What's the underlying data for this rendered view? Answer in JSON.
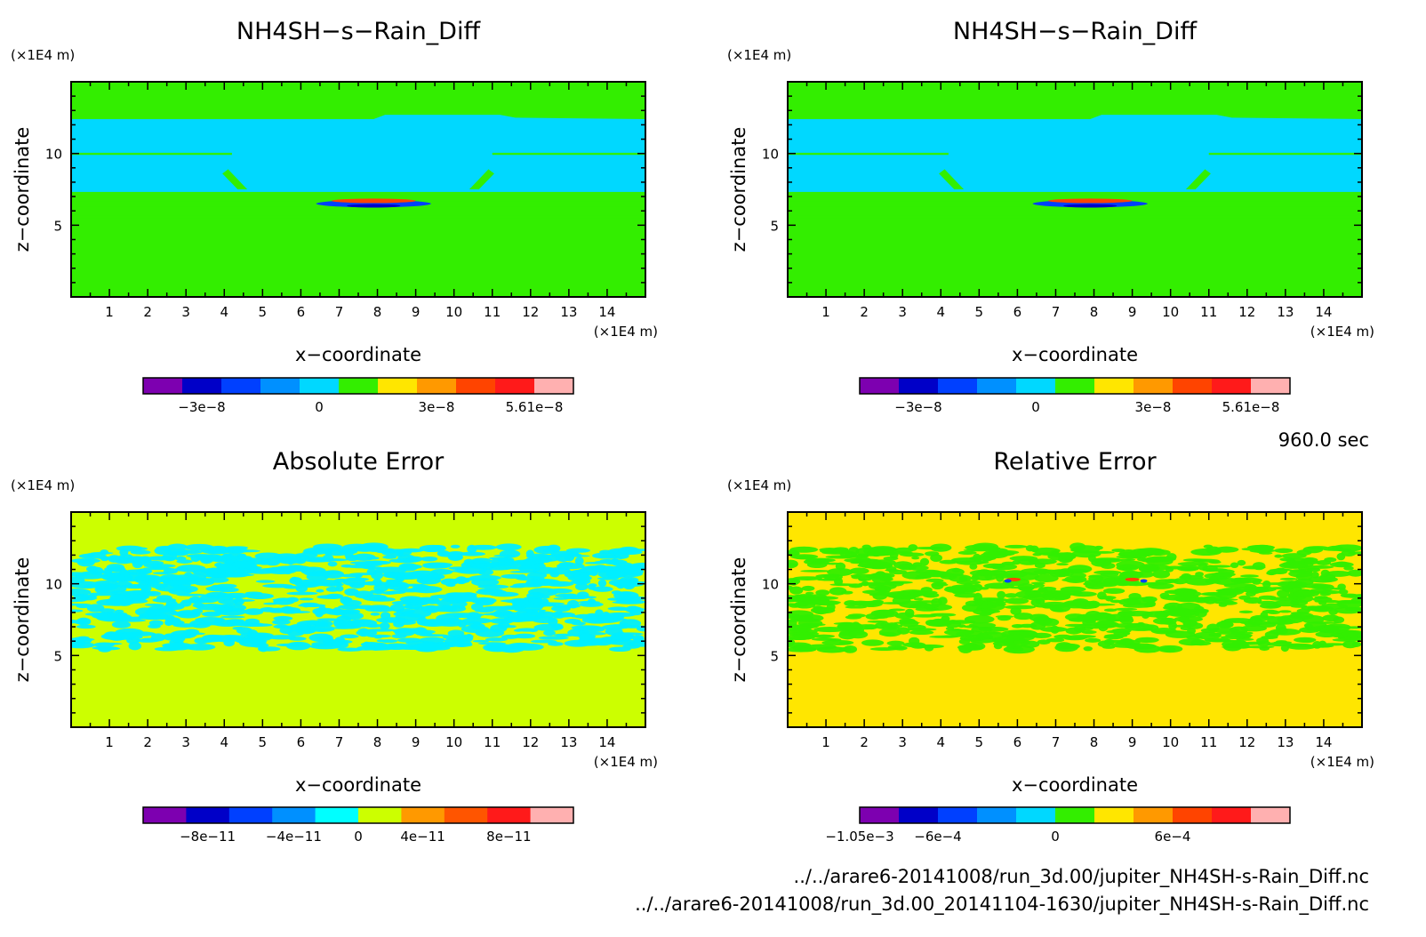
{
  "time_label": "960.0 sec",
  "source_files": [
    "../../arare6-20141008/run_3d.00/jupiter_NH4SH-s-Rain_Diff.nc",
    "../../arare6-20141008/run_3d.00_20141104-1630/jupiter_NH4SH-s-Rain_Diff.nc"
  ],
  "chart_data": [
    {
      "type": "heatmap",
      "title": "NH4SH−s−Rain_Diff",
      "xlabel": "x−coordinate",
      "ylabel": "z−coordinate",
      "x_unit": "(×1E4 m)",
      "z_unit": "(×1E4 m)",
      "xlim": [
        0,
        15
      ],
      "zlim": [
        0,
        15
      ],
      "x_ticks": [
        "1",
        "2",
        "3",
        "4",
        "5",
        "6",
        "7",
        "8",
        "9",
        "10",
        "11",
        "12",
        "13",
        "14"
      ],
      "z_ticks": [
        "5",
        "10"
      ],
      "background_color": "#33ee00",
      "colorbar": {
        "colors": [
          "#7d00b0",
          "#0000c8",
          "#0040ff",
          "#0090ff",
          "#00d8ff",
          "#33ee00",
          "#ffe600",
          "#ff9900",
          "#ff4400",
          "#ff1a1a",
          "#ffb0b0"
        ],
        "labels": [
          "−3e−8",
          "0",
          "3e−8",
          "5.61e−8"
        ]
      }
    },
    {
      "type": "heatmap",
      "title": "NH4SH−s−Rain_Diff",
      "xlabel": "x−coordinate",
      "ylabel": "z−coordinate",
      "x_unit": "(×1E4 m)",
      "z_unit": "(×1E4 m)",
      "xlim": [
        0,
        15
      ],
      "zlim": [
        0,
        15
      ],
      "x_ticks": [
        "1",
        "2",
        "3",
        "4",
        "5",
        "6",
        "7",
        "8",
        "9",
        "10",
        "11",
        "12",
        "13",
        "14"
      ],
      "z_ticks": [
        "5",
        "10"
      ],
      "background_color": "#33ee00",
      "colorbar": {
        "colors": [
          "#7d00b0",
          "#0000c8",
          "#0040ff",
          "#0090ff",
          "#00d8ff",
          "#33ee00",
          "#ffe600",
          "#ff9900",
          "#ff4400",
          "#ff1a1a",
          "#ffb0b0"
        ],
        "labels": [
          "−3e−8",
          "0",
          "3e−8",
          "5.61e−8"
        ]
      }
    },
    {
      "type": "heatmap",
      "title": "Absolute Error",
      "xlabel": "x−coordinate",
      "ylabel": "z−coordinate",
      "x_unit": "(×1E4 m)",
      "z_unit": "(×1E4 m)",
      "xlim": [
        0,
        15
      ],
      "zlim": [
        0,
        15
      ],
      "x_ticks": [
        "1",
        "2",
        "3",
        "4",
        "5",
        "6",
        "7",
        "8",
        "9",
        "10",
        "11",
        "12",
        "13",
        "14"
      ],
      "z_ticks": [
        "5",
        "10"
      ],
      "background_color": "#ccff00",
      "noise_color": "#00eeff",
      "colorbar": {
        "colors": [
          "#7d00b0",
          "#0000c8",
          "#0040ff",
          "#0090ff",
          "#00ffff",
          "#ccff00",
          "#ff9900",
          "#ff5500",
          "#ff1a1a",
          "#ffb0b0"
        ],
        "labels": [
          "−8e−11",
          "−4e−11",
          "0",
          "4e−11",
          "8e−11"
        ]
      }
    },
    {
      "type": "heatmap",
      "title": "Relative Error",
      "xlabel": "x−coordinate",
      "ylabel": "z−coordinate",
      "x_unit": "(×1E4 m)",
      "z_unit": "(×1E4 m)",
      "xlim": [
        0,
        15
      ],
      "zlim": [
        0,
        15
      ],
      "x_ticks": [
        "1",
        "2",
        "3",
        "4",
        "5",
        "6",
        "7",
        "8",
        "9",
        "10",
        "11",
        "12",
        "13",
        "14"
      ],
      "z_ticks": [
        "5",
        "10"
      ],
      "background_color": "#ffe600",
      "noise_color": "#33ee00",
      "colorbar": {
        "colors": [
          "#7d00b0",
          "#0000c8",
          "#0040ff",
          "#0090ff",
          "#00d8ff",
          "#33ee00",
          "#ffe600",
          "#ff9900",
          "#ff4400",
          "#ff1a1a",
          "#ffb0b0"
        ],
        "labels": [
          "−1.05e−3",
          "−6e−4",
          "0",
          "6e−4"
        ]
      }
    }
  ]
}
